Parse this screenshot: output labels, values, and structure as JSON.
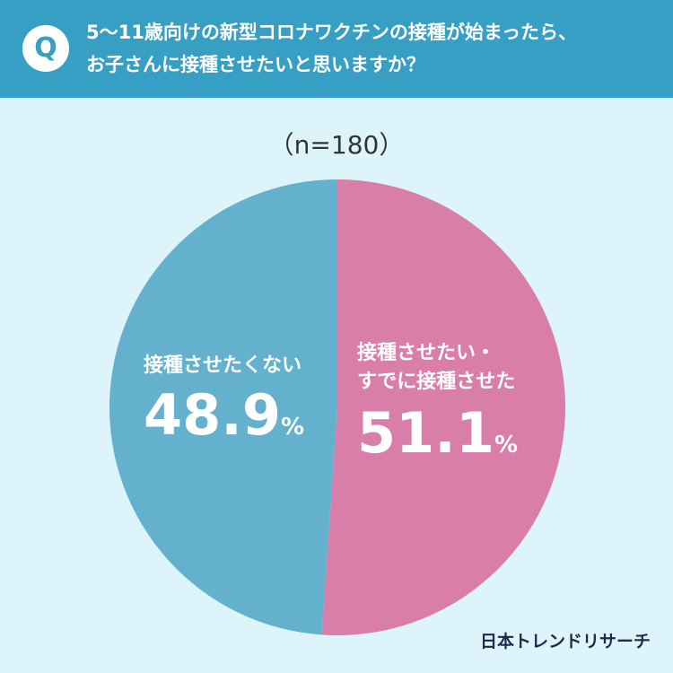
{
  "question": {
    "badge": "Q",
    "line1": "5〜11歳向けの新型コロナワクチンの接種が始まったら、",
    "line2": "お子さんに接種させたいと思いますか？"
  },
  "sample_label": "（n=180）",
  "brand": "日本トレンドリサーチ",
  "chart_data": {
    "type": "pie",
    "slices": [
      {
        "label_line1": "接種させたい・",
        "label_line2": "すでに接種させた",
        "value": 51.1,
        "value_text": "51.1",
        "unit": "%",
        "color": "#d87ea8"
      },
      {
        "label_line1": "接種させたくない",
        "label_line2": "",
        "value": 48.9,
        "value_text": "48.9",
        "unit": "%",
        "color": "#63b1cc"
      }
    ]
  }
}
